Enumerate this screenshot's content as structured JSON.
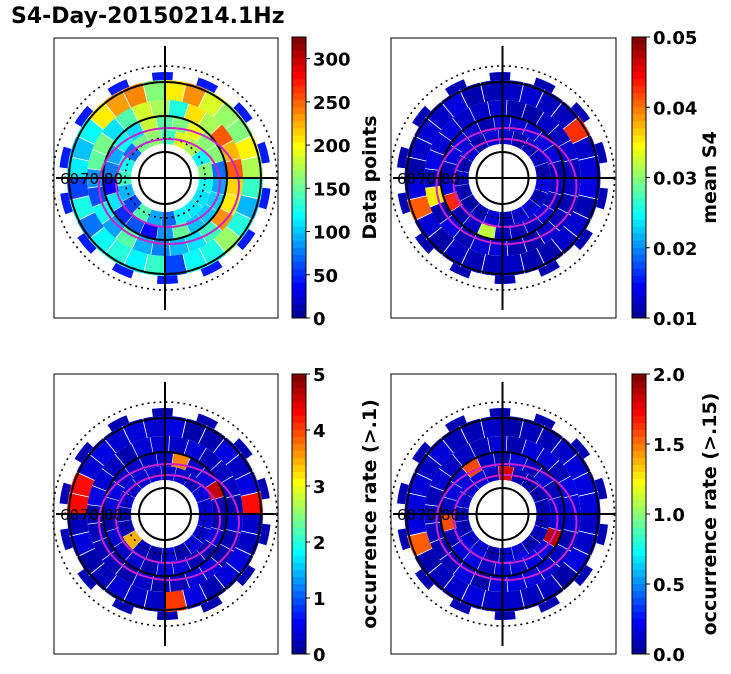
{
  "figure_title": "S4-Day-20150214.1Hz",
  "colors": {
    "background_bin": "#0000a0",
    "ring_line": "#000000",
    "oval_line": "#cc22cc",
    "frame": "#000000"
  },
  "chart_data": [
    {
      "type": "heatmap",
      "projection": "polar",
      "title": "",
      "colorbar_label": "Data points",
      "colorbar_ticks": [
        "0",
        "50",
        "100",
        "150",
        "200",
        "250",
        "300"
      ],
      "clim": [
        0,
        325
      ],
      "colormap": "jet",
      "latitude_labels": [
        "60",
        "70",
        "80"
      ],
      "grid": true
    },
    {
      "type": "heatmap",
      "projection": "polar",
      "title": "",
      "colorbar_label": "mean S4",
      "colorbar_ticks": [
        "0.01",
        "0.02",
        "0.03",
        "0.04",
        "0.05"
      ],
      "clim": [
        0.01,
        0.05
      ],
      "colormap": "jet",
      "latitude_labels": [
        "60",
        "70",
        "80"
      ],
      "grid": true
    },
    {
      "type": "heatmap",
      "projection": "polar",
      "title": "",
      "colorbar_label": "occurrence rate (>.1)",
      "colorbar_ticks": [
        "0",
        "1",
        "2",
        "3",
        "4",
        "5"
      ],
      "clim": [
        0,
        5
      ],
      "colormap": "jet",
      "latitude_labels": [
        "60",
        "70",
        "80"
      ],
      "grid": true
    },
    {
      "type": "heatmap",
      "projection": "polar",
      "title": "",
      "colorbar_label": "occurrence rate (>.15)",
      "colorbar_ticks": [
        "0.0",
        "0.5",
        "1.0",
        "1.5",
        "2.0"
      ],
      "clim": [
        0,
        2
      ],
      "colormap": "jet",
      "latitude_labels": [
        "60",
        "70",
        "80"
      ],
      "grid": true
    }
  ]
}
